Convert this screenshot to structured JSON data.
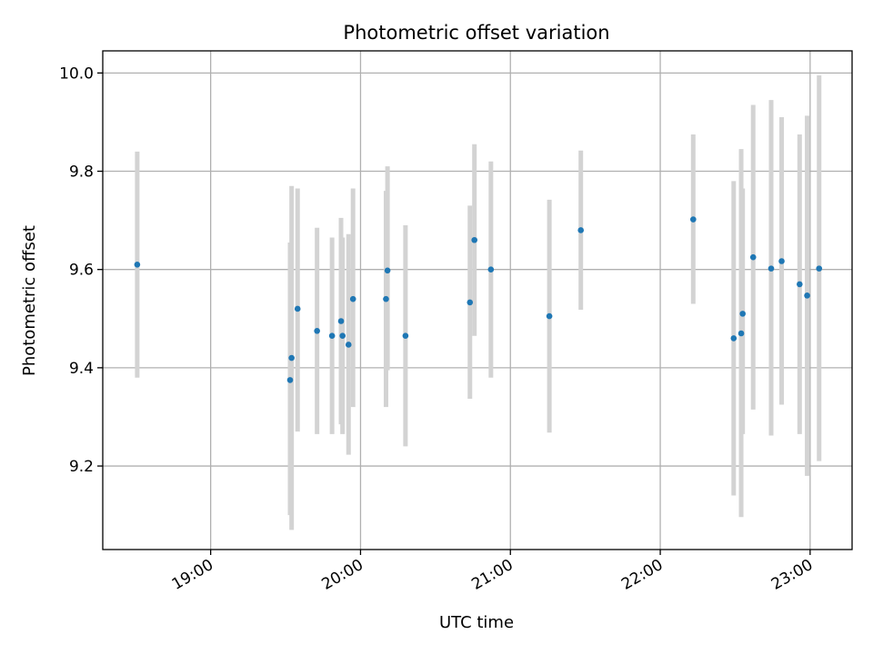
{
  "chart_data": {
    "type": "scatter",
    "title": "Photometric offset variation",
    "xlabel": "UTC time",
    "ylabel": "Photometric offset",
    "x_unit": "hour of day (UTC)",
    "xlim": [
      18.28,
      23.28
    ],
    "ylim": [
      9.03,
      10.045
    ],
    "x_ticks": [
      {
        "value": 19.0,
        "label": "19:00"
      },
      {
        "value": 20.0,
        "label": "20:00"
      },
      {
        "value": 21.0,
        "label": "21:00"
      },
      {
        "value": 22.0,
        "label": "22:00"
      },
      {
        "value": 23.0,
        "label": "23:00"
      }
    ],
    "y_ticks": [
      {
        "value": 9.2,
        "label": "9.2"
      },
      {
        "value": 9.4,
        "label": "9.4"
      },
      {
        "value": 9.6,
        "label": "9.6"
      },
      {
        "value": 9.8,
        "label": "9.8"
      },
      {
        "value": 10.0,
        "label": "10.0"
      }
    ],
    "grid": true,
    "colors": {
      "point": "#1f77b4",
      "error_bar": "#d3d3d3",
      "grid": "#b0b0b0"
    },
    "points": [
      {
        "x": 18.51,
        "y": 9.61,
        "y_low": 9.38,
        "y_high": 9.84
      },
      {
        "x": 19.53,
        "y": 9.375,
        "y_low": 9.1,
        "y_high": 9.655
      },
      {
        "x": 19.54,
        "y": 9.42,
        "y_low": 9.07,
        "y_high": 9.77
      },
      {
        "x": 19.58,
        "y": 9.52,
        "y_low": 9.27,
        "y_high": 9.765
      },
      {
        "x": 19.71,
        "y": 9.475,
        "y_low": 9.265,
        "y_high": 9.685
      },
      {
        "x": 19.81,
        "y": 9.465,
        "y_low": 9.265,
        "y_high": 9.665
      },
      {
        "x": 19.87,
        "y": 9.495,
        "y_low": 9.285,
        "y_high": 9.705
      },
      {
        "x": 19.88,
        "y": 9.465,
        "y_low": 9.265,
        "y_high": 9.665
      },
      {
        "x": 19.92,
        "y": 9.447,
        "y_low": 9.223,
        "y_high": 9.672
      },
      {
        "x": 19.95,
        "y": 9.54,
        "y_low": 9.32,
        "y_high": 9.765
      },
      {
        "x": 20.17,
        "y": 9.54,
        "y_low": 9.32,
        "y_high": 9.76
      },
      {
        "x": 20.18,
        "y": 9.598,
        "y_low": 9.395,
        "y_high": 9.81
      },
      {
        "x": 20.3,
        "y": 9.465,
        "y_low": 9.24,
        "y_high": 9.69
      },
      {
        "x": 20.73,
        "y": 9.533,
        "y_low": 9.337,
        "y_high": 9.73
      },
      {
        "x": 20.76,
        "y": 9.66,
        "y_low": 9.465,
        "y_high": 9.855
      },
      {
        "x": 20.87,
        "y": 9.6,
        "y_low": 9.38,
        "y_high": 9.82
      },
      {
        "x": 21.26,
        "y": 9.505,
        "y_low": 9.268,
        "y_high": 9.742
      },
      {
        "x": 21.47,
        "y": 9.68,
        "y_low": 9.518,
        "y_high": 9.842
      },
      {
        "x": 22.22,
        "y": 9.702,
        "y_low": 9.53,
        "y_high": 9.875
      },
      {
        "x": 22.49,
        "y": 9.46,
        "y_low": 9.14,
        "y_high": 9.78
      },
      {
        "x": 22.54,
        "y": 9.47,
        "y_low": 9.096,
        "y_high": 9.845
      },
      {
        "x": 22.55,
        "y": 9.51,
        "y_low": 9.265,
        "y_high": 9.765
      },
      {
        "x": 22.62,
        "y": 9.625,
        "y_low": 9.315,
        "y_high": 9.935
      },
      {
        "x": 22.74,
        "y": 9.602,
        "y_low": 9.262,
        "y_high": 9.945
      },
      {
        "x": 22.81,
        "y": 9.617,
        "y_low": 9.325,
        "y_high": 9.91
      },
      {
        "x": 22.93,
        "y": 9.57,
        "y_low": 9.265,
        "y_high": 9.875
      },
      {
        "x": 22.98,
        "y": 9.547,
        "y_low": 9.18,
        "y_high": 9.913
      },
      {
        "x": 23.06,
        "y": 9.602,
        "y_low": 9.21,
        "y_high": 9.995
      }
    ]
  }
}
